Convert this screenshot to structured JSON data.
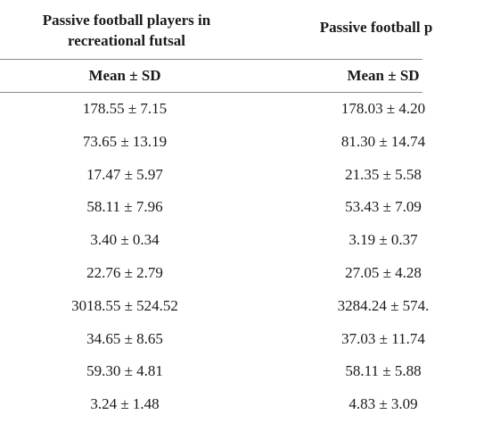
{
  "table": {
    "group_headers": [
      "Passive football players in\nrecreational futsal",
      "Passive football p"
    ],
    "sub_headers": [
      "Mean ± SD",
      "Mean ± SD"
    ],
    "rows": [
      [
        "178.55 ± 7.15",
        "178.03 ± 4.20"
      ],
      [
        "73.65 ± 13.19",
        "81.30 ± 14.74"
      ],
      [
        "17.47 ± 5.97",
        "21.35 ± 5.58"
      ],
      [
        "58.11 ± 7.96",
        "53.43 ± 7.09"
      ],
      [
        "3.40 ± 0.34",
        "3.19 ± 0.37"
      ],
      [
        "22.76 ± 2.79",
        "27.05 ± 4.28"
      ],
      [
        "3018.55 ± 524.52",
        "3284.24 ± 574."
      ],
      [
        "34.65 ± 8.65",
        "37.03 ± 11.74"
      ],
      [
        "59.30 ± 4.81",
        "58.11 ± 5.88"
      ],
      [
        "3.24 ± 1.48",
        "4.83 ± 3.09"
      ]
    ]
  }
}
